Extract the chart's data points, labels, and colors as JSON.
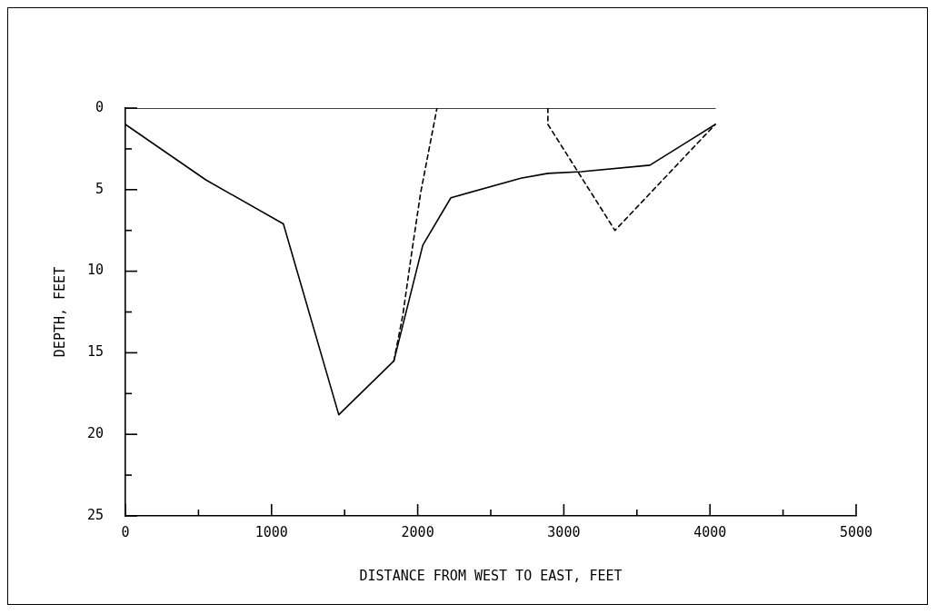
{
  "chart_data": {
    "type": "line",
    "xlabel": "DISTANCE FROM WEST TO EAST, FEET",
    "ylabel": "DEPTH, FEET",
    "xlim": [
      0,
      5000
    ],
    "xticks": [
      0,
      {
        "value": 500,
        "label": null
      },
      1000,
      {
        "value": 1500,
        "label": null
      },
      2000,
      {
        "value": 2500,
        "label": null
      },
      3000,
      {
        "value": 3500,
        "label": null
      },
      4000,
      {
        "value": 4500,
        "label": null
      },
      5000
    ],
    "ylim": [
      25,
      0
    ],
    "yticks": [
      0,
      {
        "value": 2.5,
        "label": null
      },
      5,
      {
        "value": 7.5,
        "label": null
      },
      10,
      {
        "value": 12.5,
        "label": null
      },
      15,
      {
        "value": 17.5,
        "label": null
      },
      20,
      {
        "value": 22.5,
        "label": null
      },
      25
    ],
    "grid": false,
    "legend": false,
    "marker": "none",
    "series": [
      {
        "color": "#000000",
        "line_style": "solid",
        "x": [
          0,
          4036
        ],
        "values": [
          0,
          0
        ]
      },
      {
        "color": "#000000",
        "line_style": "solid",
        "x": [
          0,
          550,
          1081,
          1460,
          1837,
          2035,
          2227,
          2705,
          2891,
          3120,
          3589,
          4036
        ],
        "values": [
          1.0,
          4.4,
          7.1,
          18.8,
          15.5,
          8.4,
          5.5,
          4.3,
          4.0,
          3.9,
          3.5,
          1.0
        ]
      },
      {
        "color": "#000000",
        "line_style": "dashed",
        "x": [
          1837,
          1898,
          1960,
          2020,
          2132
        ],
        "values": [
          15.5,
          12.7,
          8.8,
          5.2,
          0
        ]
      },
      {
        "color": "#000000",
        "line_style": "dashed",
        "x": [
          2891,
          2891,
          3350,
          4036
        ],
        "values": [
          0,
          1.0,
          7.5,
          1.0
        ]
      }
    ]
  }
}
